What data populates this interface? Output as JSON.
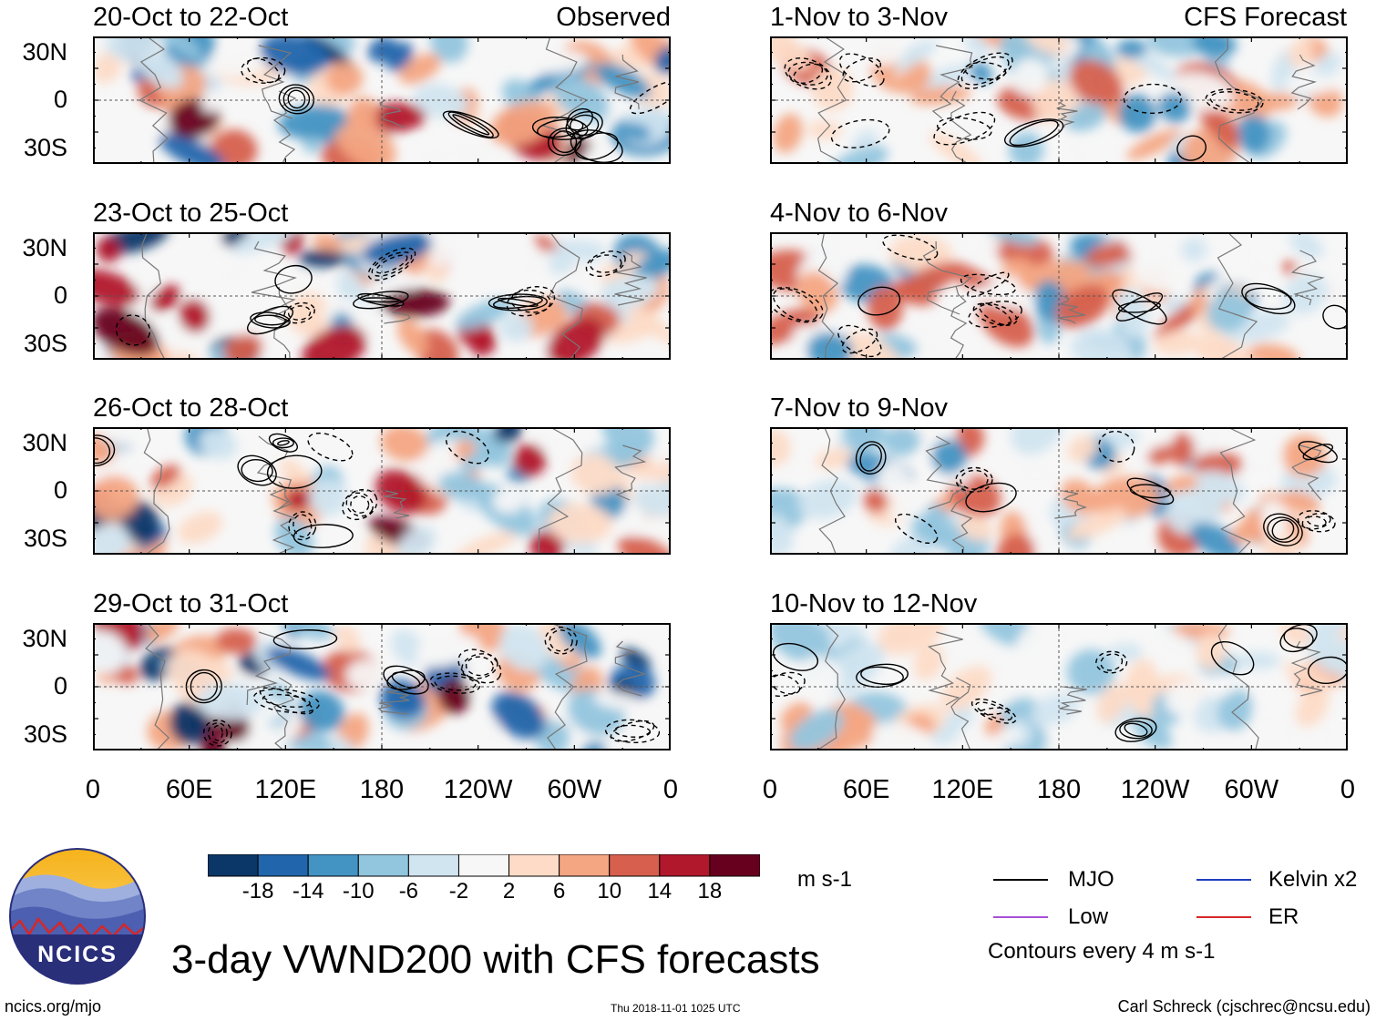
{
  "header": {
    "left_tag": "Observed",
    "right_tag": "CFS Forecast"
  },
  "panels": [
    {
      "title": "20-Oct to 22-Oct",
      "column": "left"
    },
    {
      "title": "23-Oct to 25-Oct",
      "column": "left"
    },
    {
      "title": "26-Oct to 28-Oct",
      "column": "left"
    },
    {
      "title": "29-Oct to 31-Oct",
      "column": "left"
    },
    {
      "title": "1-Nov to 3-Nov",
      "column": "right"
    },
    {
      "title": "4-Nov to 6-Nov",
      "column": "right"
    },
    {
      "title": "7-Nov to 9-Nov",
      "column": "right"
    },
    {
      "title": "10-Nov to 12-Nov",
      "column": "right"
    }
  ],
  "chart_data": {
    "type": "heatmap",
    "title": "3-day VWND200 with CFS forecasts",
    "variable": "VWND200",
    "units": "m s-1",
    "lat_ticks": [
      "30N",
      "0",
      "30S"
    ],
    "lon_ticks": [
      "0",
      "60E",
      "120E",
      "180",
      "120W",
      "60W",
      "0"
    ],
    "lat_range": [
      -40,
      40
    ],
    "lon_range": [
      0,
      360
    ],
    "colorbar": {
      "levels": [
        -18,
        -14,
        -10,
        -6,
        -2,
        2,
        6,
        10,
        14,
        18
      ],
      "labels": [
        "-18",
        "-14",
        "-10",
        "-6",
        "-2",
        "2",
        "6",
        "10",
        "14",
        "18"
      ],
      "colors": [
        "#0a3668",
        "#2166ac",
        "#4393c3",
        "#92c5de",
        "#d1e5f0",
        "#f7f7f7",
        "#fddbc7",
        "#f4a582",
        "#d6604d",
        "#b2182b",
        "#67001f"
      ]
    },
    "legend": [
      {
        "label": "MJO",
        "color": "#000000"
      },
      {
        "label": "Kelvin x2",
        "color": "#1f3fbf"
      },
      {
        "label": "Low",
        "color": "#a64fd6"
      },
      {
        "label": "ER",
        "color": "#d62728"
      }
    ],
    "contour_note": "Contours every 4 m s-1"
  },
  "footer": {
    "logo_text": "NCICS",
    "url": "ncics.org/mjo",
    "timestamp": "Thu 2018-11-01 1025 UTC",
    "credit": "Carl Schreck (cjschrec@ncsu.edu)"
  }
}
